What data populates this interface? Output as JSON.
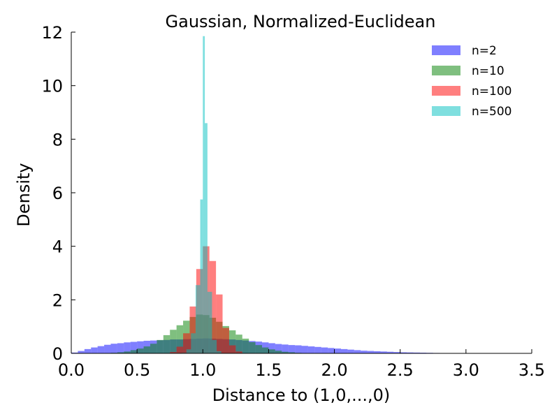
{
  "chart_data": {
    "type": "histogram",
    "title": "Gaussian, Normalized-Euclidean",
    "xlabel": "Distance to (1,0,...,0)",
    "ylabel": "Density",
    "xlim": [
      0.0,
      3.5
    ],
    "ylim": [
      0,
      12
    ],
    "xticks": [
      "0.0",
      "0.5",
      "1.0",
      "1.5",
      "2.0",
      "2.5",
      "3.0",
      "3.5"
    ],
    "yticks": [
      "0",
      "2",
      "4",
      "6",
      "8",
      "10",
      "12"
    ],
    "grid": false,
    "legend_position": "top-right",
    "series": [
      {
        "name": "n=2",
        "color": "#0000ff",
        "alpha": 0.5,
        "bins": [
          [
            0.0,
            0.05,
            0.03
          ],
          [
            0.05,
            0.1,
            0.09
          ],
          [
            0.1,
            0.15,
            0.16
          ],
          [
            0.15,
            0.2,
            0.22
          ],
          [
            0.2,
            0.25,
            0.27
          ],
          [
            0.25,
            0.3,
            0.32
          ],
          [
            0.3,
            0.35,
            0.36
          ],
          [
            0.35,
            0.4,
            0.38
          ],
          [
            0.4,
            0.45,
            0.41
          ],
          [
            0.45,
            0.5,
            0.43
          ],
          [
            0.5,
            0.55,
            0.45
          ],
          [
            0.55,
            0.6,
            0.47
          ],
          [
            0.6,
            0.65,
            0.48
          ],
          [
            0.65,
            0.7,
            0.49
          ],
          [
            0.7,
            0.75,
            0.5
          ],
          [
            0.75,
            0.8,
            0.52
          ],
          [
            0.8,
            0.85,
            0.52
          ],
          [
            0.85,
            0.9,
            0.53
          ],
          [
            0.9,
            0.95,
            0.54
          ],
          [
            0.95,
            1.0,
            0.55
          ],
          [
            1.0,
            1.05,
            0.56
          ],
          [
            1.05,
            1.1,
            0.55
          ],
          [
            1.1,
            1.15,
            0.54
          ],
          [
            1.15,
            1.2,
            0.53
          ],
          [
            1.2,
            1.25,
            0.52
          ],
          [
            1.25,
            1.3,
            0.5
          ],
          [
            1.3,
            1.35,
            0.48
          ],
          [
            1.35,
            1.4,
            0.46
          ],
          [
            1.4,
            1.45,
            0.44
          ],
          [
            1.45,
            1.5,
            0.41
          ],
          [
            1.5,
            1.55,
            0.38
          ],
          [
            1.55,
            1.6,
            0.35
          ],
          [
            1.6,
            1.65,
            0.33
          ],
          [
            1.65,
            1.7,
            0.31
          ],
          [
            1.7,
            1.75,
            0.3
          ],
          [
            1.75,
            1.8,
            0.28
          ],
          [
            1.8,
            1.85,
            0.26
          ],
          [
            1.85,
            1.9,
            0.24
          ],
          [
            1.9,
            1.95,
            0.22
          ],
          [
            1.95,
            2.0,
            0.2
          ],
          [
            2.0,
            2.05,
            0.18
          ],
          [
            2.05,
            2.1,
            0.16
          ],
          [
            2.1,
            2.15,
            0.14
          ],
          [
            2.15,
            2.2,
            0.12
          ],
          [
            2.2,
            2.25,
            0.1
          ],
          [
            2.25,
            2.3,
            0.09
          ],
          [
            2.3,
            2.35,
            0.08
          ],
          [
            2.35,
            2.4,
            0.07
          ],
          [
            2.4,
            2.45,
            0.06
          ],
          [
            2.45,
            2.5,
            0.05
          ],
          [
            2.5,
            2.55,
            0.04
          ],
          [
            2.55,
            2.6,
            0.035
          ],
          [
            2.6,
            2.65,
            0.03
          ],
          [
            2.65,
            2.7,
            0.025
          ],
          [
            2.7,
            2.75,
            0.02
          ],
          [
            2.75,
            2.8,
            0.015
          ],
          [
            2.8,
            2.85,
            0.012
          ],
          [
            2.85,
            2.9,
            0.01
          ],
          [
            2.9,
            2.95,
            0.008
          ],
          [
            2.95,
            3.0,
            0.006
          ],
          [
            3.0,
            3.05,
            0.005
          ],
          [
            3.05,
            3.1,
            0.004
          ],
          [
            3.1,
            3.15,
            0.003
          ],
          [
            3.15,
            3.2,
            0.002
          ],
          [
            3.2,
            3.25,
            0.002
          ],
          [
            3.25,
            3.3,
            0.001
          ],
          [
            3.3,
            3.35,
            0.001
          ],
          [
            3.35,
            3.4,
            0.001
          ]
        ]
      },
      {
        "name": "n=10",
        "color": "#008000",
        "alpha": 0.5,
        "bins": [
          [
            0.2,
            0.25,
            0.005
          ],
          [
            0.25,
            0.3,
            0.01
          ],
          [
            0.3,
            0.35,
            0.02
          ],
          [
            0.35,
            0.4,
            0.04
          ],
          [
            0.4,
            0.45,
            0.07
          ],
          [
            0.45,
            0.5,
            0.12
          ],
          [
            0.5,
            0.55,
            0.18
          ],
          [
            0.55,
            0.6,
            0.26
          ],
          [
            0.6,
            0.65,
            0.36
          ],
          [
            0.65,
            0.7,
            0.5
          ],
          [
            0.7,
            0.75,
            0.68
          ],
          [
            0.75,
            0.8,
            0.88
          ],
          [
            0.8,
            0.85,
            1.05
          ],
          [
            0.85,
            0.9,
            1.22
          ],
          [
            0.9,
            0.95,
            1.36
          ],
          [
            0.95,
            1.0,
            1.45
          ],
          [
            1.0,
            1.05,
            1.43
          ],
          [
            1.05,
            1.1,
            1.33
          ],
          [
            1.1,
            1.15,
            1.18
          ],
          [
            1.15,
            1.2,
            1.02
          ],
          [
            1.2,
            1.25,
            0.86
          ],
          [
            1.25,
            1.3,
            0.7
          ],
          [
            1.3,
            1.35,
            0.55
          ],
          [
            1.35,
            1.4,
            0.42
          ],
          [
            1.4,
            1.45,
            0.31
          ],
          [
            1.45,
            1.5,
            0.22
          ],
          [
            1.5,
            1.55,
            0.15
          ],
          [
            1.55,
            1.6,
            0.1
          ],
          [
            1.6,
            1.65,
            0.06
          ],
          [
            1.65,
            1.7,
            0.04
          ],
          [
            1.7,
            1.75,
            0.02
          ],
          [
            1.75,
            1.8,
            0.01
          ],
          [
            1.8,
            1.85,
            0.005
          ]
        ]
      },
      {
        "name": "n=100",
        "color": "#ff0000",
        "alpha": 0.5,
        "bins": [
          [
            0.7,
            0.75,
            0.005
          ],
          [
            0.75,
            0.8,
            0.05
          ],
          [
            0.8,
            0.85,
            0.25
          ],
          [
            0.85,
            0.9,
            0.75
          ],
          [
            0.9,
            0.95,
            1.75
          ],
          [
            0.95,
            1.0,
            3.15
          ],
          [
            1.0,
            1.05,
            4.0
          ],
          [
            1.05,
            1.1,
            3.45
          ],
          [
            1.1,
            1.15,
            2.2
          ],
          [
            1.15,
            1.2,
            0.95
          ],
          [
            1.2,
            1.25,
            0.3
          ],
          [
            1.25,
            1.3,
            0.07
          ],
          [
            1.3,
            1.35,
            0.01
          ]
        ]
      },
      {
        "name": "n=500",
        "color": "#00bfbf",
        "alpha": 0.5,
        "bins": [
          [
            0.84,
            0.875,
            0.02
          ],
          [
            0.875,
            0.91,
            0.15
          ],
          [
            0.91,
            0.945,
            0.75
          ],
          [
            0.945,
            0.98,
            2.55
          ],
          [
            0.98,
            1.0,
            5.75
          ],
          [
            1.0,
            1.015,
            11.85
          ],
          [
            1.015,
            1.035,
            8.6
          ],
          [
            1.035,
            1.07,
            2.3
          ],
          [
            1.07,
            1.105,
            0.5
          ],
          [
            1.105,
            1.14,
            0.08
          ],
          [
            1.14,
            1.175,
            0.01
          ]
        ]
      }
    ]
  }
}
